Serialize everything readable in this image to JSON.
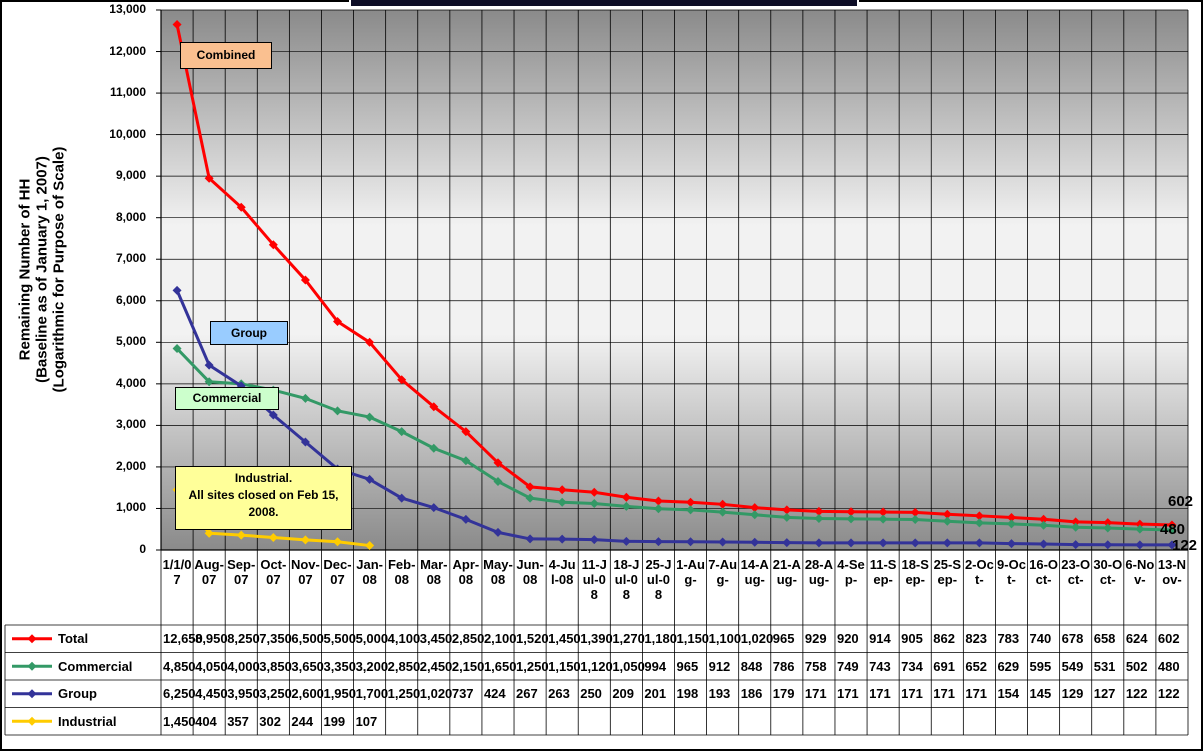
{
  "chart_data": {
    "type": "line",
    "ylabel": [
      "Remaining Number of HH",
      "(Baseline as of January 1, 2007)",
      "(Logarithmic for Purpose of Scale)"
    ],
    "categories": [
      "1/1/07",
      "Aug-07",
      "Sep-07",
      "Oct-07",
      "Nov-07",
      "Dec-07",
      "Jan-08",
      "Feb-08",
      "Mar-08",
      "Apr-08",
      "May-08",
      "Jun-08",
      "4-Jul-08",
      "11-Jul-08",
      "18-Jul-08",
      "25-Jul-08",
      "1-Aug-",
      "7-Aug-",
      "14-Aug-",
      "21-Aug-",
      "28-Aug-",
      "4-Sep-",
      "11-Sep-",
      "18-Sep-",
      "25-Sep-",
      "2-Oct-",
      "9-Oct-",
      "16-Oct-",
      "23-Oct-",
      "30-Oct-",
      "6-Nov-",
      "13-Nov-"
    ],
    "series": [
      {
        "name": "Total",
        "color": "#ff0000",
        "values": [
          12650,
          8950,
          8250,
          7350,
          6500,
          5500,
          5000,
          4100,
          3450,
          2850,
          2100,
          1520,
          1450,
          1390,
          1270,
          1180,
          1150,
          1100,
          1020,
          965,
          929,
          920,
          914,
          905,
          862,
          823,
          783,
          740,
          678,
          658,
          624,
          602
        ],
        "value_labels": [
          "12,650",
          "8,950",
          "8,250",
          "7,350",
          "6,500",
          "5,500",
          "5,000",
          "4,100",
          "3,450",
          "2,850",
          "2,100",
          "1,520",
          "1,450",
          "1,390",
          "1,270",
          "1,180",
          "1,150",
          "1,100",
          "1,020",
          "965",
          "929",
          "920",
          "914",
          "905",
          "862",
          "823",
          "783",
          "740",
          "678",
          "658",
          "624",
          "602"
        ]
      },
      {
        "name": "Commercial",
        "color": "#339966",
        "values": [
          4850,
          4050,
          4000,
          3850,
          3650,
          3350,
          3200,
          2850,
          2450,
          2150,
          1650,
          1250,
          1150,
          1120,
          1050,
          994,
          965,
          912,
          848,
          786,
          758,
          749,
          743,
          734,
          691,
          652,
          629,
          595,
          549,
          531,
          502,
          480
        ],
        "value_labels": [
          "4,850",
          "4,050",
          "4,000",
          "3,850",
          "3,650",
          "3,350",
          "3,200",
          "2,850",
          "2,450",
          "2,150",
          "1,650",
          "1,250",
          "1,150",
          "1,120",
          "1,050",
          "994",
          "965",
          "912",
          "848",
          "786",
          "758",
          "749",
          "743",
          "734",
          "691",
          "652",
          "629",
          "595",
          "549",
          "531",
          "502",
          "480"
        ]
      },
      {
        "name": "Group",
        "color": "#333399",
        "values": [
          6250,
          4450,
          3950,
          3250,
          2600,
          1950,
          1700,
          1250,
          1020,
          737,
          424,
          267,
          263,
          250,
          209,
          201,
          198,
          193,
          186,
          179,
          171,
          171,
          171,
          171,
          171,
          171,
          154,
          145,
          129,
          127,
          122,
          122
        ],
        "value_labels": [
          "6,250",
          "4,450",
          "3,950",
          "3,250",
          "2,600",
          "1,950",
          "1,700",
          "1,250",
          "1,020",
          "737",
          "424",
          "267",
          "263",
          "250",
          "209",
          "201",
          "198",
          "193",
          "186",
          "179",
          "171",
          "171",
          "171",
          "171",
          "171",
          "171",
          "154",
          "145",
          "129",
          "127",
          "122",
          "122"
        ]
      },
      {
        "name": "Industrial",
        "color": "#ffcc00",
        "values": [
          1450,
          404,
          357,
          302,
          244,
          199,
          107,
          null,
          null,
          null,
          null,
          null,
          null,
          null,
          null,
          null,
          null,
          null,
          null,
          null,
          null,
          null,
          null,
          null,
          null,
          null,
          null,
          null,
          null,
          null,
          null,
          null
        ],
        "value_labels": [
          "1,450",
          "404",
          "357",
          "302",
          "244",
          "199",
          "107",
          null,
          null,
          null,
          null,
          null,
          null,
          null,
          null,
          null,
          null,
          null,
          null,
          null,
          null,
          null,
          null,
          null,
          null,
          null,
          null,
          null,
          null,
          null,
          null,
          null
        ]
      }
    ],
    "annotations": [
      "Combined",
      "Group",
      "Commercial",
      "Industrial.",
      "All sites closed on Feb 15, 2008."
    ],
    "ylim": [
      0,
      13000
    ],
    "yticks": [
      0,
      {
        "value": 1000,
        "label": "1,000"
      },
      {
        "value": 2000,
        "label": "2,000"
      },
      {
        "value": 3000,
        "label": "3,000"
      },
      {
        "value": 4000,
        "label": "4,000"
      },
      {
        "value": 5000,
        "label": "5,000"
      },
      {
        "value": 6000,
        "label": "6,000"
      },
      {
        "value": 7000,
        "label": "7,000"
      },
      {
        "value": 8000,
        "label": "8,000"
      },
      {
        "value": 9000,
        "label": "9,000"
      },
      {
        "value": 10000,
        "label": "10,000"
      },
      {
        "value": 11000,
        "label": "11,000"
      },
      {
        "value": 12000,
        "label": "12,000"
      },
      {
        "value": 13000,
        "label": "13,000"
      }
    ],
    "grid": true
  }
}
